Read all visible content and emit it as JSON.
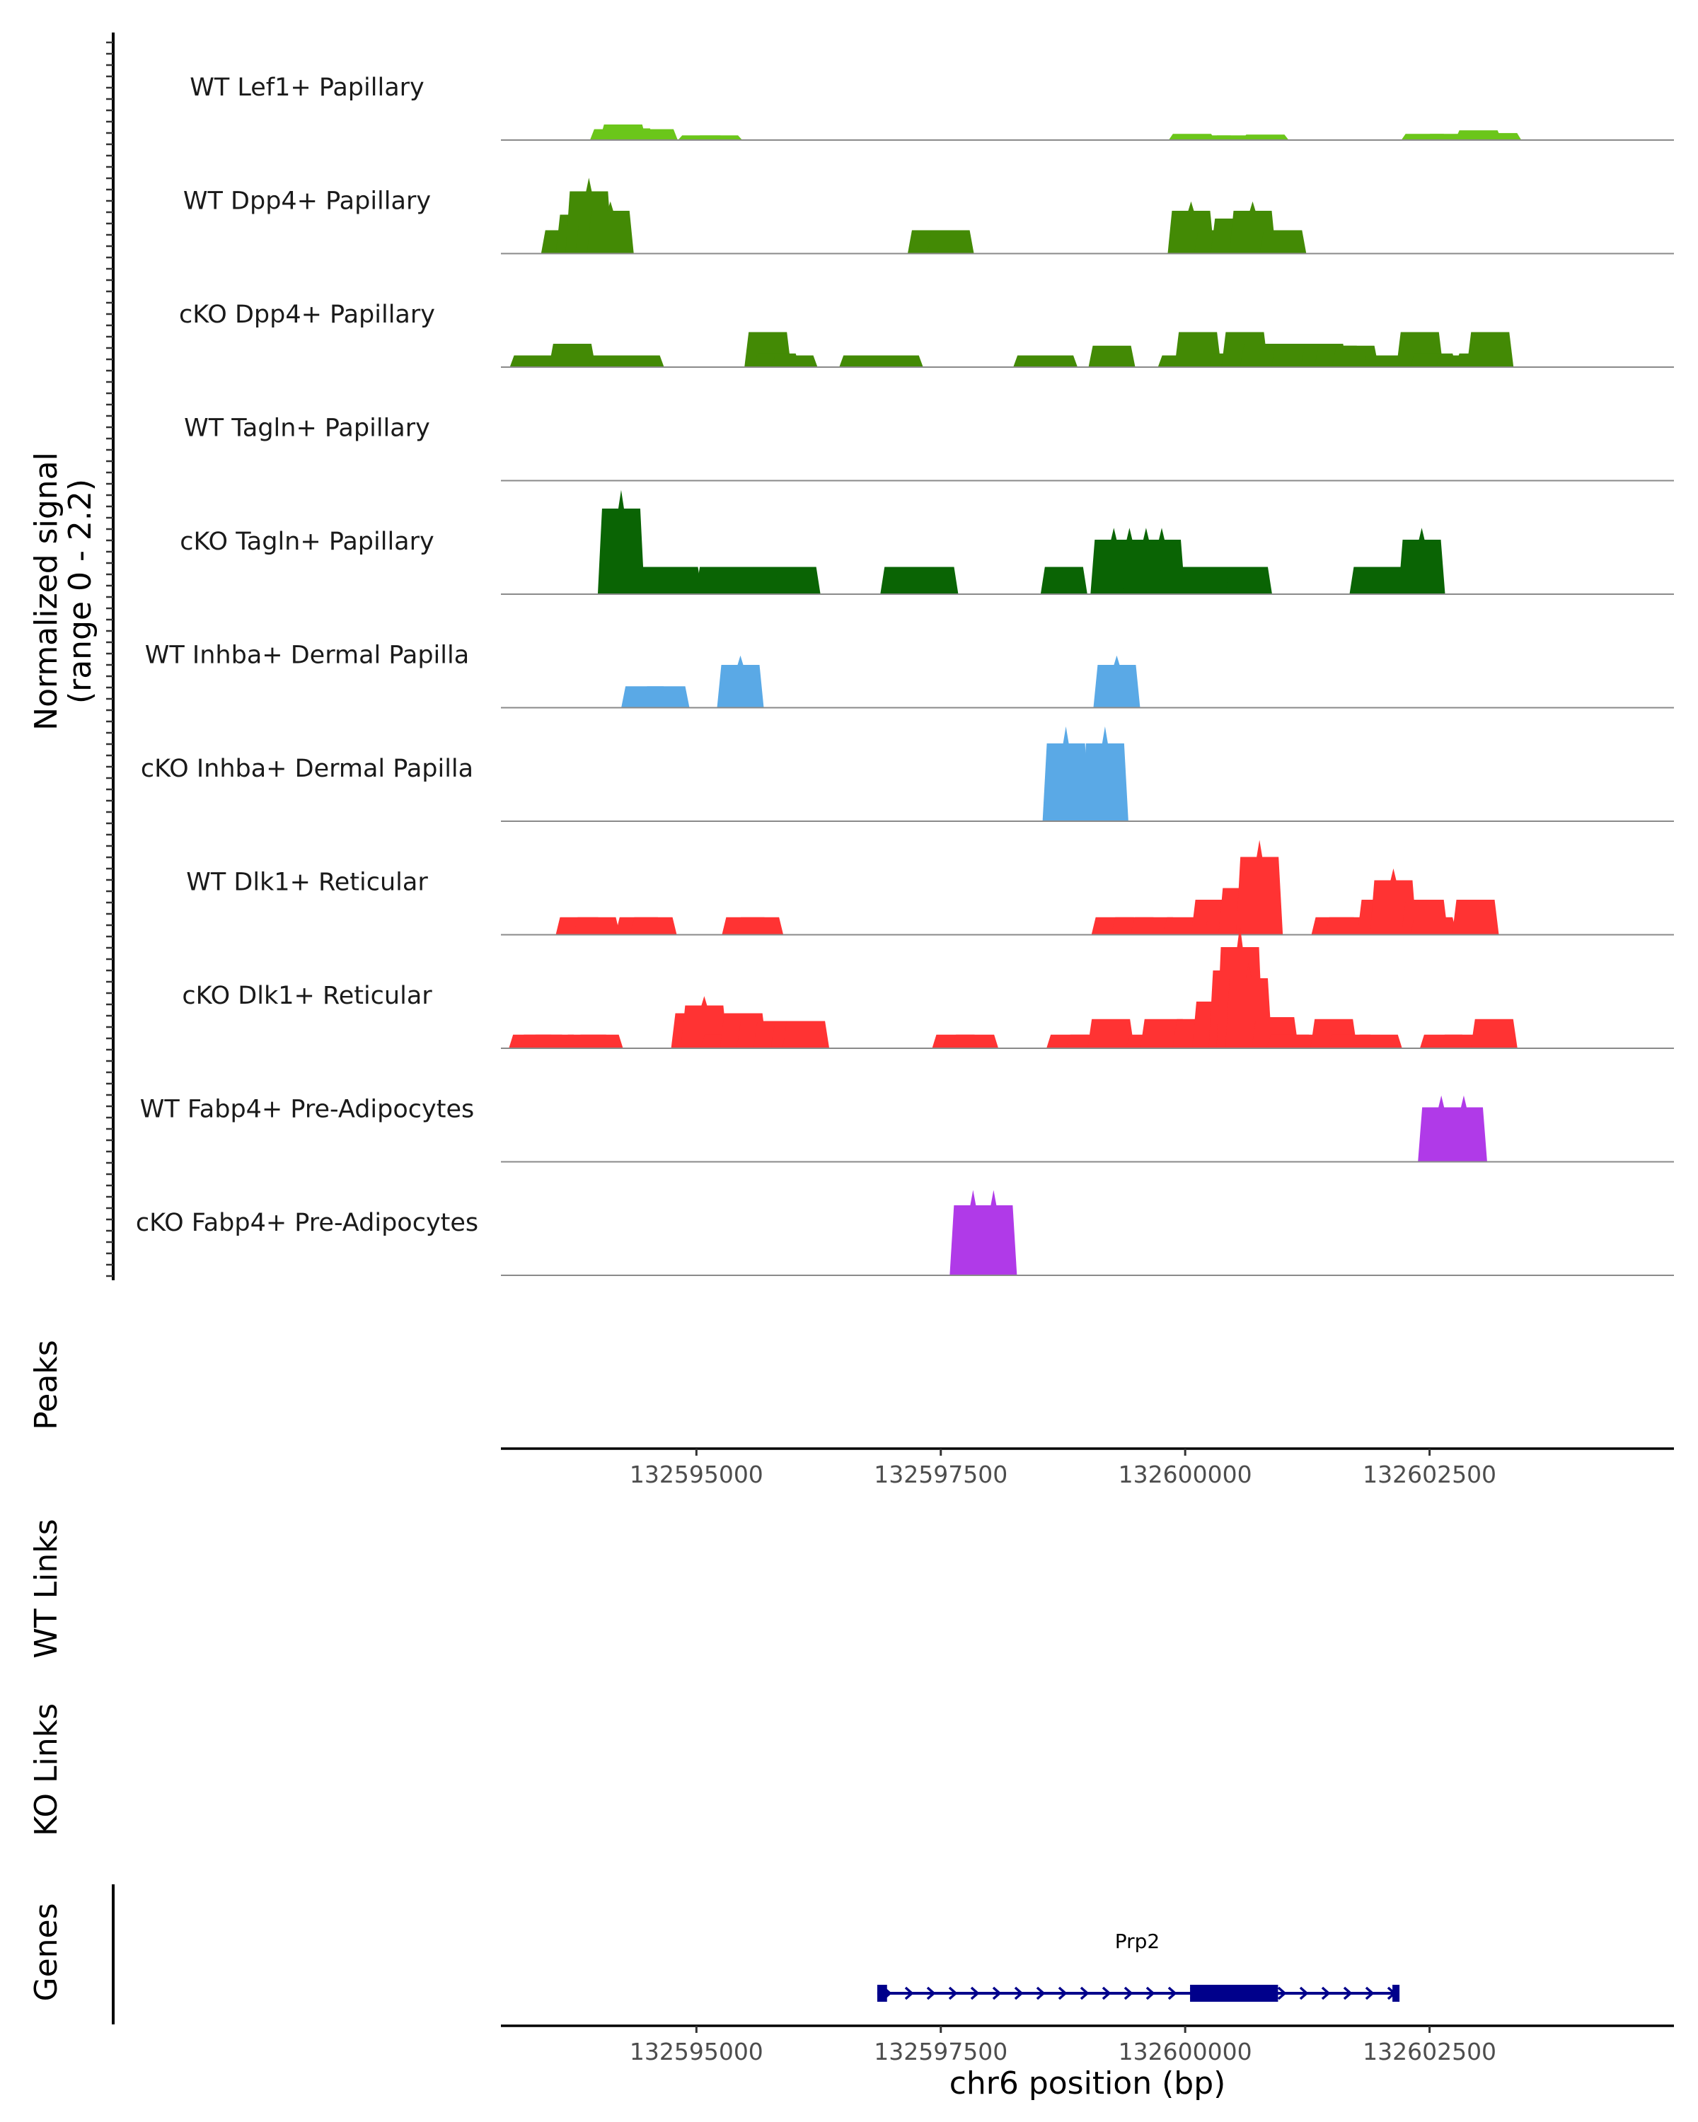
{
  "chart_data": {
    "type": "coverage",
    "region": {
      "chrom": "chr6",
      "start": 132593000,
      "end": 132605000
    },
    "xlabel": "chr6 position (bp)",
    "x_ticks": [
      132595000,
      132597500,
      132600000,
      132602500
    ],
    "coverage": {
      "ylabel_line1": "Normalized signal",
      "ylabel_line2": "(range 0 - 2.2)",
      "ylim": [
        0,
        2.2
      ],
      "tracks": [
        {
          "name": "WT Lef1+ Papillary",
          "color": "#6BC61A",
          "peaks": [
            [
              132594150,
              0.28
            ],
            [
              132594250,
              0.4
            ],
            [
              132594330,
              0.3
            ],
            [
              132594420,
              0.25
            ],
            [
              132594570,
              0.28
            ],
            [
              132595050,
              0.12
            ],
            [
              132595230,
              0.12
            ],
            [
              132600070,
              0.16
            ],
            [
              132600270,
              0.12
            ],
            [
              132600520,
              0.12
            ],
            [
              132600820,
              0.14
            ],
            [
              132602450,
              0.16
            ],
            [
              132602700,
              0.16
            ],
            [
              132603000,
              0.25
            ],
            [
              132603200,
              0.18
            ]
          ]
        },
        {
          "name": "WT Dpp4+ Papillary",
          "color": "#438A05",
          "peaks": [
            [
              132593650,
              0.6
            ],
            [
              132593800,
              1.0
            ],
            [
              132593900,
              1.6
            ],
            [
              132594000,
              0.9
            ],
            [
              132594120,
              1.1
            ],
            [
              132597400,
              0.6
            ],
            [
              132597600,
              0.6
            ],
            [
              132600060,
              1.1
            ],
            [
              132600330,
              0.6
            ],
            [
              132600500,
              0.9
            ],
            [
              132600690,
              1.1
            ],
            [
              132601000,
              0.6
            ]
          ]
        },
        {
          "name": "cKO Dpp4+ Papillary",
          "color": "#438A05",
          "peaks": [
            [
              132593330,
              0.3
            ],
            [
              132593650,
              0.3
            ],
            [
              132593730,
              0.6
            ],
            [
              132594130,
              0.3
            ],
            [
              132594430,
              0.3
            ],
            [
              132595730,
              0.9
            ],
            [
              132595820,
              0.35
            ],
            [
              132596000,
              0.3
            ],
            [
              132596700,
              0.3
            ],
            [
              132597080,
              0.3
            ],
            [
              132598480,
              0.3
            ],
            [
              132598660,
              0.3
            ],
            [
              132599250,
              0.55
            ],
            [
              132599960,
              0.3
            ],
            [
              132600130,
              0.9
            ],
            [
              132600480,
              0.35
            ],
            [
              132600610,
              0.9
            ],
            [
              132600800,
              0.6
            ],
            [
              132601120,
              0.6
            ],
            [
              132601420,
              0.6
            ],
            [
              132601560,
              0.55
            ],
            [
              132601740,
              0.55
            ],
            [
              132602050,
              0.3
            ],
            [
              132602400,
              0.9
            ],
            [
              132602540,
              0.35
            ],
            [
              132602800,
              0.3
            ],
            [
              132603000,
              0.35
            ],
            [
              132603120,
              0.9
            ]
          ]
        },
        {
          "name": "WT Tagln+ Papillary",
          "color": "#1F6E05",
          "peaks": []
        },
        {
          "name": "cKO Tagln+ Papillary",
          "color": "#0A6404",
          "peaks": [
            [
              132594230,
              2.2
            ],
            [
              132594470,
              0.7
            ],
            [
              132594670,
              0.7
            ],
            [
              132594820,
              0.7
            ],
            [
              132595230,
              0.7
            ],
            [
              132595530,
              0.7
            ],
            [
              132595780,
              0.7
            ],
            [
              132596030,
              0.7
            ],
            [
              132597120,
              0.7
            ],
            [
              132597440,
              0.7
            ],
            [
              132598760,
              0.7
            ],
            [
              132599270,
              1.4
            ],
            [
              132599430,
              1.4
            ],
            [
              132599600,
              1.4
            ],
            [
              132599760,
              1.4
            ],
            [
              132599950,
              0.7
            ],
            [
              132600210,
              0.7
            ],
            [
              132600410,
              0.7
            ],
            [
              132600650,
              0.7
            ],
            [
              132601920,
              0.7
            ],
            [
              132602110,
              0.7
            ],
            [
              132602420,
              1.4
            ]
          ]
        },
        {
          "name": "WT Inhba+ Dermal Papilla",
          "color": "#5AA9E6",
          "peaks": [
            [
              132594470,
              0.55
            ],
            [
              132594690,
              0.55
            ],
            [
              132595450,
              1.1
            ],
            [
              132599300,
              1.1
            ]
          ]
        },
        {
          "name": "cKO Inhba+ Dermal Papilla",
          "color": "#5AA9E6",
          "peaks": [
            [
              132598780,
              2.0
            ],
            [
              132599180,
              2.0
            ]
          ]
        },
        {
          "name": "WT Dlk1+ Reticular",
          "color": "#FF3333",
          "peaks": [
            [
              132593800,
              0.45
            ],
            [
              132593980,
              0.45
            ],
            [
              132594410,
              0.45
            ],
            [
              132594560,
              0.45
            ],
            [
              132595500,
              0.45
            ],
            [
              132595650,
              0.45
            ],
            [
              132599280,
              0.45
            ],
            [
              132599480,
              0.45
            ],
            [
              132599680,
              0.45
            ],
            [
              132600010,
              0.45
            ],
            [
              132600300,
              0.9
            ],
            [
              132600430,
              0.45
            ],
            [
              132600580,
              1.2
            ],
            [
              132600760,
              2.0
            ],
            [
              132601530,
              0.45
            ],
            [
              132601670,
              0.45
            ],
            [
              132602000,
              0.9
            ],
            [
              132602130,
              1.4
            ],
            [
              132602450,
              0.9
            ],
            [
              132602540,
              0.45
            ],
            [
              132602970,
              0.9
            ]
          ]
        },
        {
          "name": "cKO Dlk1+ Reticular",
          "color": "#FF3333",
          "peaks": [
            [
              132593320,
              0.35
            ],
            [
              132593430,
              0.35
            ],
            [
              132593550,
              0.35
            ],
            [
              132593880,
              0.35
            ],
            [
              132594010,
              0.35
            ],
            [
              132594980,
              0.9
            ],
            [
              132595080,
              1.1
            ],
            [
              132595280,
              0.35
            ],
            [
              132595480,
              0.9
            ],
            [
              132595650,
              0.7
            ],
            [
              132595820,
              0.7
            ],
            [
              132596000,
              0.7
            ],
            [
              132596120,
              0.7
            ],
            [
              132597650,
              0.35
            ],
            [
              132597850,
              0.35
            ],
            [
              132598820,
              0.35
            ],
            [
              132599020,
              0.35
            ],
            [
              132599240,
              0.75
            ],
            [
              132599630,
              0.35
            ],
            [
              132599780,
              0.75
            ],
            [
              132600110,
              0.75
            ],
            [
              132600310,
              1.2
            ],
            [
              132600480,
              2.0
            ],
            [
              132600560,
              2.6
            ],
            [
              132600650,
              1.8
            ],
            [
              132600920,
              0.8
            ],
            [
              132601070,
              0.35
            ],
            [
              132601330,
              0.35
            ],
            [
              132601520,
              0.75
            ],
            [
              132601700,
              0.35
            ],
            [
              132601980,
              0.35
            ],
            [
              132602640,
              0.35
            ],
            [
              132602850,
              0.35
            ],
            [
              132603160,
              0.75
            ]
          ]
        },
        {
          "name": "WT Fabp4+ Pre-Adipocytes",
          "color": "#B03AE8",
          "peaks": [
            [
              132602620,
              1.4
            ],
            [
              132602850,
              1.4
            ]
          ]
        },
        {
          "name": "cKO Fabp4+ Pre-Adipocytes",
          "color": "#B03AE8",
          "peaks": [
            [
              132597830,
              1.8
            ],
            [
              132598040,
              1.8
            ]
          ]
        }
      ]
    },
    "panels": {
      "peaks": "Peaks",
      "wt_links": "WT Links",
      "ko_links": "KO Links",
      "genes": "Genes"
    },
    "gene": {
      "name": "Prp2",
      "start": 132596850,
      "end": 132602170,
      "strand": "+",
      "exons": [
        [
          132596850,
          132596950
        ],
        [
          132600050,
          132600950
        ],
        [
          132602120,
          132602170
        ]
      ]
    }
  }
}
